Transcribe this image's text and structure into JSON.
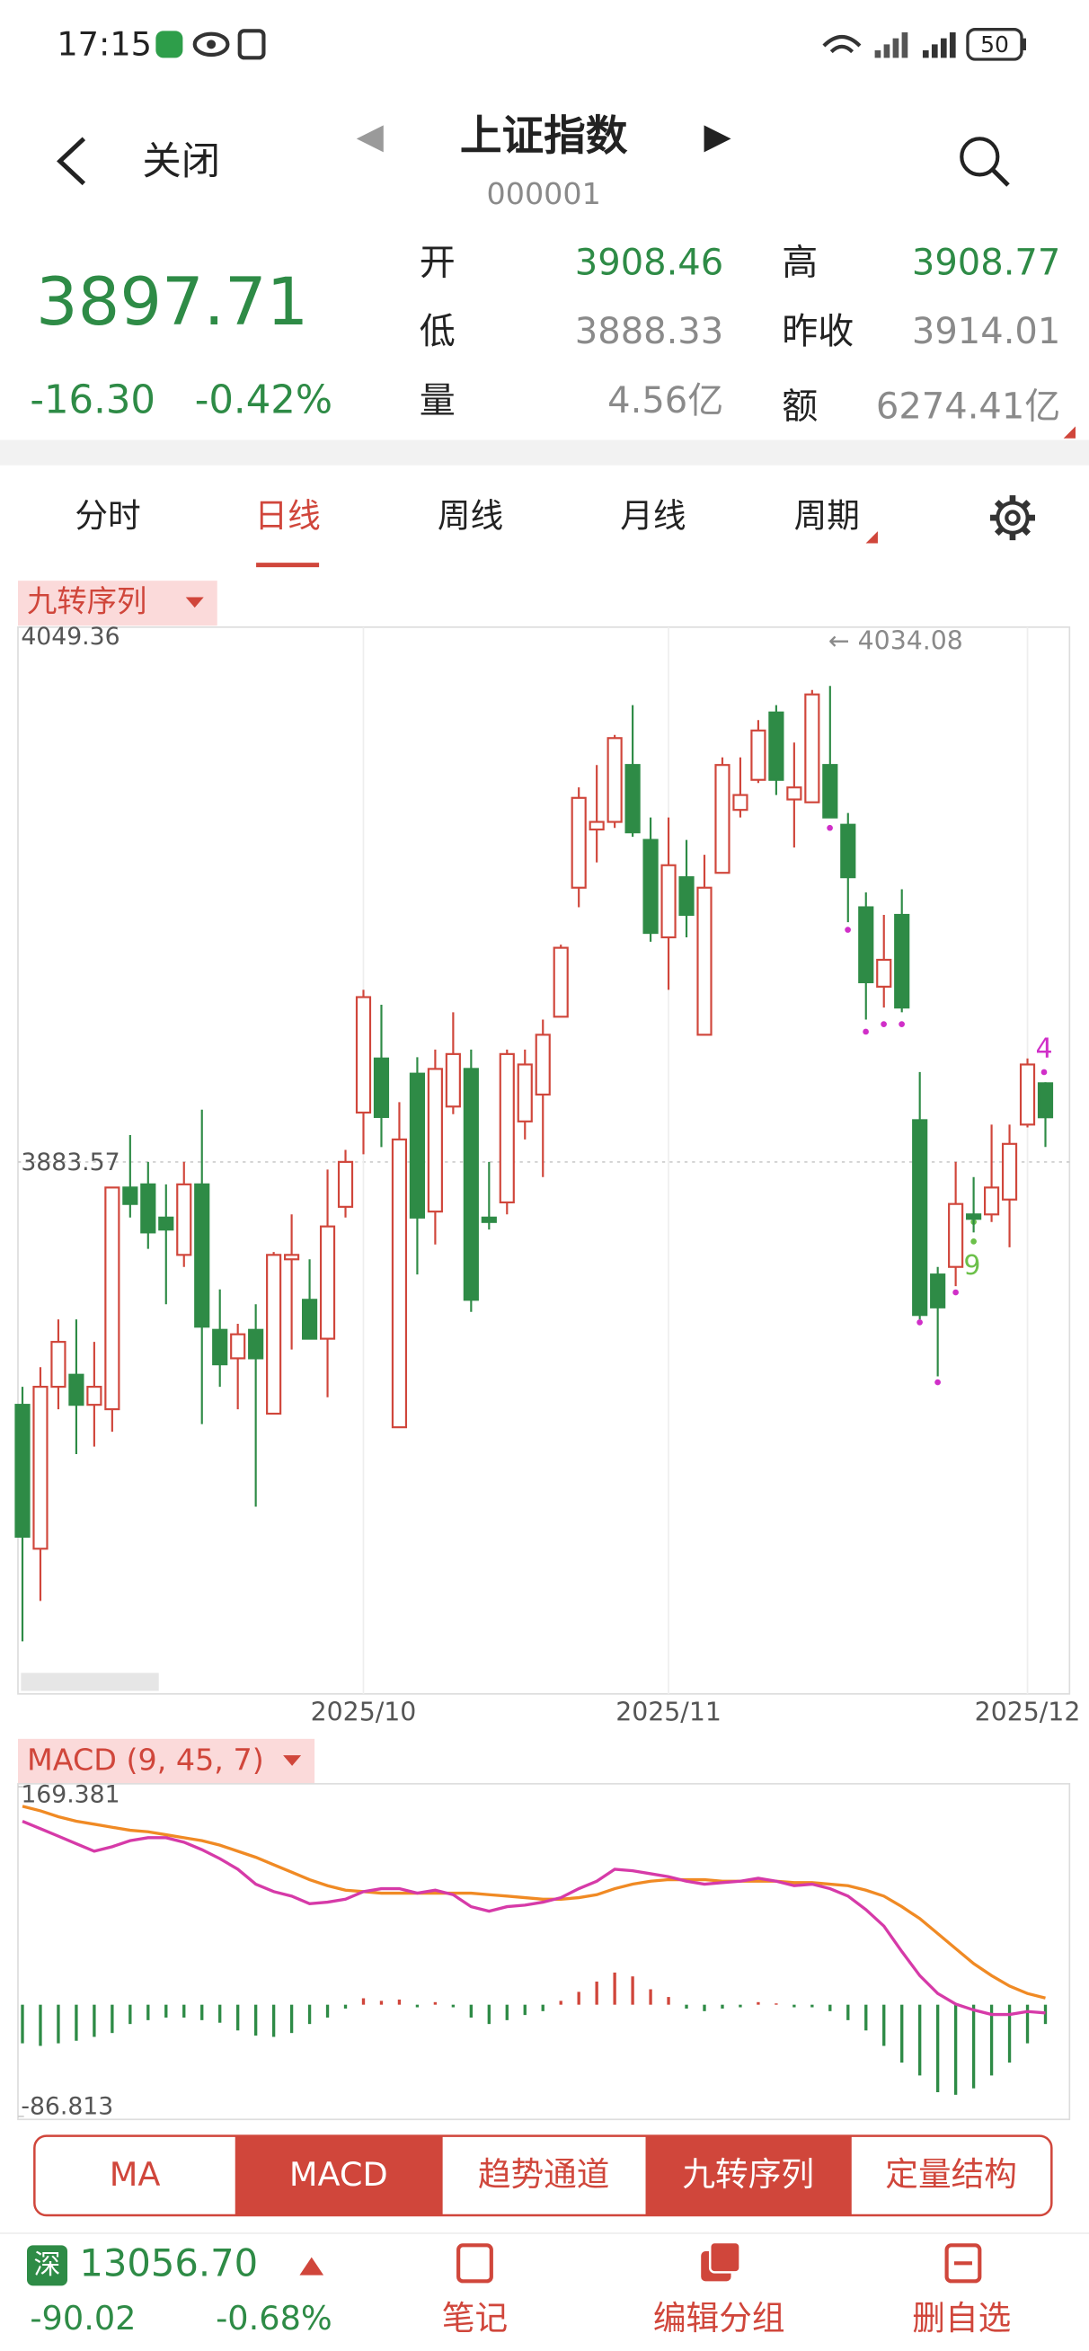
{
  "status_bar": {
    "time": "17:15",
    "battery": 50
  },
  "header": {
    "back": "关闭",
    "title": "上证指数",
    "code": "000001"
  },
  "quote": {
    "price": "3897.71",
    "change": "-16.30",
    "change_pct": "-0.42%",
    "fields": [
      {
        "label": "开",
        "value": "3908.46"
      },
      {
        "label": "高",
        "value": "3908.77"
      },
      {
        "label": "低",
        "value": "3888.33"
      },
      {
        "label": "昨收",
        "value": "3914.01"
      },
      {
        "label": "量",
        "value": "4.56亿"
      },
      {
        "label": "额",
        "value": "6274.41亿"
      }
    ]
  },
  "tabs": [
    "分时",
    "日线",
    "周线",
    "月线",
    "周期"
  ],
  "active_tab": 1,
  "chart_data": [
    {
      "type": "candlestick",
      "title": "九转序列",
      "max_label": "← 4034.08",
      "nine_turn_labels": [
        9,
        4
      ],
      "up_color": "#d0463b",
      "down_color": "#2e8b46",
      "categories": [
        null,
        null,
        null,
        null,
        null,
        null,
        null,
        null,
        null,
        null,
        null,
        null,
        null,
        null,
        null,
        null,
        null,
        null,
        null,
        "2025/10",
        null,
        null,
        null,
        null,
        null,
        null,
        null,
        null,
        null,
        null,
        null,
        null,
        null,
        null,
        null,
        null,
        "2025/11",
        null,
        null,
        null,
        null,
        null,
        null,
        null,
        null,
        null,
        null,
        null,
        null,
        null,
        null,
        null,
        null,
        null,
        null,
        null,
        "2025/12",
        null
      ],
      "open": [
        3806.8,
        3761.3,
        3812.5,
        3816.3,
        3806.8,
        3805.4,
        3875.5,
        3876.5,
        3866.0,
        3854.2,
        3876.5,
        3830.5,
        3821.5,
        3830.5,
        3804.0,
        3852.8,
        3840.0,
        3827.7,
        3869.4,
        3899.2,
        3916.3,
        3799.7,
        3911.5,
        3867.9,
        3901.1,
        3913.0,
        3866.0,
        3870.8,
        3896.4,
        3904.9,
        3929.5,
        3970.3,
        3988.7,
        3991.1,
        4009.1,
        3985.4,
        3954.6,
        3973.6,
        3923.8,
        3975.0,
        3994.9,
        4004.4,
        4025.7,
        3998.2,
        3997.3,
        4009.1,
        3990.2,
        3964.1,
        3939.0,
        3961.7,
        3896.8,
        3848.0,
        3850.4,
        3867.0,
        3867.0,
        3871.7,
        3895.4,
        3908.46
      ],
      "high": [
        3812.5,
        3818.7,
        3833.8,
        3833.8,
        3826.7,
        3875.5,
        3892.1,
        3883.6,
        3876.5,
        3883.6,
        3900.1,
        3843.3,
        3832.4,
        3838.6,
        3855.1,
        3867.0,
        3852.8,
        3881.2,
        3887.4,
        3938.0,
        3933.3,
        3902.5,
        3916.7,
        3919.1,
        3930.9,
        3919.1,
        3883.6,
        3919.1,
        3919.1,
        3928.6,
        3952.3,
        4002.0,
        4009.1,
        4018.6,
        4028.0,
        3992.5,
        3992.5,
        3985.4,
        3980.7,
        4011.5,
        4011.5,
        4023.3,
        4028.0,
        4016.2,
        4032.8,
        4034.08,
        3993.9,
        3968.8,
        3961.7,
        3969.8,
        3912.0,
        3850.4,
        3883.6,
        3878.8,
        3895.4,
        3895.4,
        3916.3,
        3908.77
      ],
      "low": [
        3732.0,
        3744.8,
        3805.4,
        3791.2,
        3793.6,
        3798.3,
        3866.0,
        3856.1,
        3838.6,
        3850.4,
        3800.7,
        3812.5,
        3805.4,
        3774.6,
        3804.0,
        3824.3,
        3827.7,
        3809.2,
        3866.0,
        3886.0,
        3888.3,
        3799.7,
        3848.0,
        3857.5,
        3898.7,
        3836.2,
        3862.2,
        3867.0,
        3890.7,
        3878.8,
        3929.5,
        3964.1,
        3978.3,
        3989.2,
        3986.4,
        3953.2,
        3938.0,
        3954.6,
        3923.8,
        3975.0,
        3992.5,
        4003.4,
        3999.6,
        3983.0,
        3997.3,
        3992.5,
        3959.4,
        3928.6,
        3932.4,
        3930.9,
        3833.8,
        3815.8,
        3844.3,
        3861.3,
        3864.6,
        3856.6,
        3894.5,
        3888.33
      ],
      "close": [
        3765.1,
        3812.5,
        3826.7,
        3806.8,
        3812.5,
        3875.5,
        3870.3,
        3861.3,
        3862.2,
        3876.5,
        3831.5,
        3819.6,
        3829.1,
        3821.5,
        3854.2,
        3854.2,
        3827.7,
        3863.2,
        3883.6,
        3935.7,
        3897.8,
        3890.7,
        3866.0,
        3913.0,
        3917.7,
        3840.0,
        3864.6,
        3917.7,
        3914.4,
        3923.8,
        3951.3,
        3998.7,
        3991.1,
        4017.6,
        3987.8,
        3956.0,
        3977.4,
        3961.7,
        3970.3,
        4009.1,
        3999.6,
        4020.0,
        4004.4,
        4002.0,
        4031.4,
        3992.5,
        3973.6,
        3940.4,
        3947.5,
        3932.4,
        3835.2,
        3837.6,
        3870.3,
        3865.6,
        3875.5,
        3889.3,
        3914.4,
        3897.71
      ],
      "ylim": [
        3715.4,
        4049.36
      ],
      "yticks": [
        4049.36,
        3883.57
      ]
    },
    {
      "type": "macd",
      "title": "MACD (9, 45, 7)",
      "up_color": "#d0463b",
      "down_color": "#2e8b46",
      "series": [
        {
          "color": "#d63aa8",
          "values": [
            142.6,
            136.8,
            131.0,
            125.1,
            119.3,
            122.8,
            127.5,
            129.8,
            129.8,
            126.3,
            120.5,
            113.5,
            105.3,
            93.7,
            87.9,
            84.4,
            78.5,
            79.7,
            82.0,
            87.9,
            90.2,
            90.2,
            86.7,
            89.0,
            85.5,
            76.2,
            72.7,
            76.2,
            77.4,
            79.7,
            83.2,
            90.2,
            96.0,
            105.3,
            104.1,
            101.8,
            99.5,
            96.0,
            93.7,
            94.9,
            96.0,
            98.3,
            96.0,
            92.5,
            93.7,
            90.2,
            84.4,
            73.9,
            61.1,
            41.3,
            22.6,
            8.7,
            0.5,
            -4.1,
            -7.6,
            -7.6,
            -5.3,
            -6.4
          ]
        },
        {
          "color": "#f08a24",
          "values": [
            154.2,
            150.7,
            146.1,
            142.6,
            140.3,
            137.9,
            135.6,
            134.4,
            132.1,
            129.8,
            127.5,
            124.0,
            119.3,
            114.6,
            108.8,
            103.0,
            97.2,
            92.5,
            89.0,
            87.9,
            86.7,
            86.7,
            86.7,
            86.7,
            86.7,
            86.7,
            85.5,
            84.4,
            83.2,
            82.0,
            82.0,
            83.2,
            85.5,
            90.2,
            93.7,
            96.0,
            97.2,
            97.2,
            97.2,
            96.0,
            96.0,
            96.0,
            96.0,
            94.9,
            94.9,
            93.7,
            92.5,
            89.0,
            84.4,
            76.2,
            66.9,
            55.3,
            43.6,
            32.0,
            22.6,
            14.5,
            8.7,
            5.2
          ]
        }
      ],
      "histogram": [
        -30,
        -32,
        -30,
        -28,
        -25,
        -22,
        -15,
        -12,
        -10,
        -10,
        -12,
        -14,
        -20,
        -24,
        -25,
        -22,
        -15,
        -10,
        -3,
        5,
        3,
        4,
        -2,
        2,
        -2,
        -10,
        -15,
        -12,
        -8,
        -5,
        3,
        10,
        18,
        25,
        22,
        12,
        6,
        -3,
        -5,
        -3,
        -2,
        2,
        1,
        -2,
        -2,
        -5,
        -12,
        -20,
        -32,
        -45,
        -55,
        -68,
        -70,
        -65,
        -55,
        -45,
        -30,
        -15
      ],
      "ylim": [
        -86.813,
        169.381
      ],
      "yticks": [
        169.381,
        -86.813
      ]
    }
  ],
  "buttons": [
    "MA",
    "MACD",
    "趋势通道",
    "九转序列",
    "定量结构"
  ],
  "active_buttons": [
    1,
    3
  ],
  "footer": {
    "market": "深",
    "index": "13056.70",
    "change": "-90.02",
    "change_pct": "-0.68%",
    "actions": [
      "笔记",
      "编辑分组",
      "删自选"
    ]
  }
}
